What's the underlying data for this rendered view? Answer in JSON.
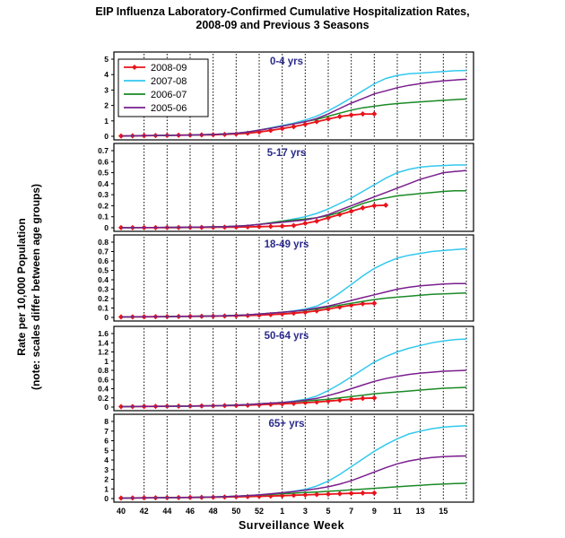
{
  "title_line1": "EIP Influenza Laboratory-Confirmed Cumulative Hospitalization Rates,",
  "title_line2": "2008-09 and Previous 3 Seasons",
  "ylabel_line1": "Rate per 10,000 Population",
  "ylabel_line2": "(note: scales differ between age groups)",
  "xlabel": "Surveillance Week",
  "colors": {
    "2008-09": "#e8141b",
    "2007-08": "#33c8ee",
    "2006-07": "#1a8a26",
    "2005-06": "#7a1e8e"
  },
  "chart_data": {
    "type": "line",
    "x_tick_labels": [
      "40",
      "42",
      "44",
      "46",
      "48",
      "50",
      "52",
      "1",
      "3",
      "5",
      "7",
      "9",
      "11",
      "13",
      "15"
    ],
    "legend": [
      "2008-09",
      "2007-08",
      "2006-07",
      "2005-06"
    ],
    "legend_placement": "top-left of first panel",
    "grid": "vertical dotted lines every other week",
    "panels": [
      {
        "label": "0-4 yrs",
        "ylim": [
          0,
          5
        ],
        "y_ticks": [
          "0",
          "1",
          "2",
          "3",
          "4",
          "5"
        ],
        "series": [
          {
            "name": "2008-09",
            "values": [
              0.02,
              0.03,
              0.04,
              0.05,
              0.06,
              0.07,
              0.08,
              0.09,
              0.1,
              0.12,
              0.15,
              0.2,
              0.28,
              0.38,
              0.5,
              0.62,
              0.78,
              0.95,
              1.12,
              1.28,
              1.38,
              1.45,
              1.45
            ]
          },
          {
            "name": "2007-08",
            "values": [
              0.02,
              0.03,
              0.04,
              0.05,
              0.06,
              0.07,
              0.08,
              0.1,
              0.12,
              0.15,
              0.2,
              0.28,
              0.4,
              0.55,
              0.7,
              0.85,
              1.05,
              1.3,
              1.65,
              2.05,
              2.5,
              2.95,
              3.4,
              3.75,
              3.95,
              4.05,
              4.1,
              4.15,
              4.2,
              4.25,
              4.27
            ]
          },
          {
            "name": "2006-07",
            "values": [
              0.02,
              0.03,
              0.04,
              0.05,
              0.06,
              0.07,
              0.08,
              0.1,
              0.12,
              0.15,
              0.2,
              0.28,
              0.4,
              0.52,
              0.65,
              0.8,
              0.95,
              1.1,
              1.3,
              1.5,
              1.7,
              1.85,
              1.95,
              2.05,
              2.12,
              2.18,
              2.23,
              2.28,
              2.33,
              2.38,
              2.42
            ]
          },
          {
            "name": "2005-06",
            "values": [
              0.02,
              0.03,
              0.04,
              0.05,
              0.06,
              0.07,
              0.08,
              0.1,
              0.12,
              0.15,
              0.2,
              0.28,
              0.4,
              0.52,
              0.65,
              0.8,
              0.95,
              1.15,
              1.45,
              1.8,
              2.15,
              2.45,
              2.75,
              2.95,
              3.15,
              3.3,
              3.42,
              3.52,
              3.6,
              3.65,
              3.7
            ]
          }
        ]
      },
      {
        "label": "5-17 yrs",
        "ylim": [
          0,
          0.7
        ],
        "y_ticks": [
          "0",
          "0.1",
          "0.2",
          "0.3",
          "0.4",
          "0.5",
          "0.6",
          "0.7"
        ],
        "series": [
          {
            "name": "2008-09",
            "values": [
              0.001,
              0.001,
              0.001,
              0.001,
              0.002,
              0.002,
              0.003,
              0.003,
              0.004,
              0.005,
              0.006,
              0.008,
              0.01,
              0.012,
              0.015,
              0.02,
              0.04,
              0.06,
              0.09,
              0.12,
              0.15,
              0.18,
              0.2,
              0.205
            ]
          },
          {
            "name": "2007-08",
            "values": [
              0.001,
              0.001,
              0.002,
              0.002,
              0.003,
              0.004,
              0.005,
              0.006,
              0.008,
              0.01,
              0.015,
              0.02,
              0.03,
              0.045,
              0.06,
              0.08,
              0.1,
              0.13,
              0.17,
              0.22,
              0.27,
              0.33,
              0.39,
              0.45,
              0.5,
              0.53,
              0.55,
              0.56,
              0.565,
              0.57,
              0.57
            ]
          },
          {
            "name": "2006-07",
            "values": [
              0.001,
              0.001,
              0.002,
              0.002,
              0.003,
              0.004,
              0.005,
              0.006,
              0.008,
              0.01,
              0.015,
              0.02,
              0.03,
              0.045,
              0.06,
              0.07,
              0.08,
              0.09,
              0.11,
              0.14,
              0.18,
              0.22,
              0.25,
              0.27,
              0.29,
              0.3,
              0.31,
              0.32,
              0.33,
              0.335,
              0.335
            ]
          },
          {
            "name": "2005-06",
            "values": [
              0.001,
              0.001,
              0.002,
              0.002,
              0.003,
              0.004,
              0.005,
              0.006,
              0.008,
              0.01,
              0.015,
              0.02,
              0.03,
              0.04,
              0.05,
              0.06,
              0.07,
              0.09,
              0.12,
              0.16,
              0.2,
              0.24,
              0.28,
              0.32,
              0.36,
              0.4,
              0.44,
              0.47,
              0.5,
              0.51,
              0.52
            ]
          }
        ]
      },
      {
        "label": "18-49 yrs",
        "ylim": [
          0,
          0.8
        ],
        "y_ticks": [
          "0",
          "0.1",
          "0.2",
          "0.3",
          "0.4",
          "0.5",
          "0.6",
          "0.7",
          "0.8"
        ],
        "series": [
          {
            "name": "2008-09",
            "values": [
              0.005,
              0.006,
              0.007,
              0.008,
              0.009,
              0.01,
              0.011,
              0.012,
              0.013,
              0.015,
              0.017,
              0.02,
              0.024,
              0.03,
              0.036,
              0.045,
              0.055,
              0.07,
              0.09,
              0.11,
              0.13,
              0.145,
              0.15
            ]
          },
          {
            "name": "2007-08",
            "values": [
              0.005,
              0.006,
              0.007,
              0.008,
              0.009,
              0.01,
              0.011,
              0.013,
              0.015,
              0.018,
              0.022,
              0.028,
              0.036,
              0.045,
              0.055,
              0.07,
              0.09,
              0.12,
              0.18,
              0.26,
              0.35,
              0.44,
              0.52,
              0.58,
              0.63,
              0.66,
              0.68,
              0.7,
              0.71,
              0.72,
              0.73
            ]
          },
          {
            "name": "2006-07",
            "values": [
              0.005,
              0.006,
              0.007,
              0.008,
              0.009,
              0.01,
              0.011,
              0.013,
              0.015,
              0.018,
              0.022,
              0.028,
              0.036,
              0.045,
              0.055,
              0.065,
              0.075,
              0.09,
              0.11,
              0.13,
              0.15,
              0.17,
              0.19,
              0.205,
              0.215,
              0.225,
              0.235,
              0.245,
              0.25,
              0.255,
              0.26
            ]
          },
          {
            "name": "2005-06",
            "values": [
              0.005,
              0.006,
              0.007,
              0.008,
              0.009,
              0.01,
              0.011,
              0.013,
              0.015,
              0.018,
              0.022,
              0.028,
              0.036,
              0.045,
              0.055,
              0.065,
              0.08,
              0.1,
              0.12,
              0.15,
              0.18,
              0.21,
              0.24,
              0.27,
              0.3,
              0.32,
              0.335,
              0.345,
              0.355,
              0.36,
              0.36
            ]
          }
        ]
      },
      {
        "label": "50-64 yrs",
        "ylim": [
          0,
          1.6
        ],
        "y_ticks": [
          "0",
          "0.2",
          "0.4",
          "0.6",
          "0.8",
          "1",
          "1.2",
          "1.4",
          "1.6"
        ],
        "series": [
          {
            "name": "2008-09",
            "values": [
              0.01,
              0.012,
              0.014,
              0.016,
              0.018,
              0.02,
              0.022,
              0.025,
              0.028,
              0.032,
              0.036,
              0.04,
              0.05,
              0.06,
              0.07,
              0.08,
              0.095,
              0.11,
              0.13,
              0.15,
              0.17,
              0.19,
              0.2
            ]
          },
          {
            "name": "2007-08",
            "values": [
              0.01,
              0.012,
              0.014,
              0.016,
              0.018,
              0.02,
              0.022,
              0.026,
              0.03,
              0.036,
              0.044,
              0.055,
              0.07,
              0.085,
              0.1,
              0.13,
              0.17,
              0.24,
              0.36,
              0.5,
              0.66,
              0.82,
              0.98,
              1.1,
              1.2,
              1.28,
              1.34,
              1.4,
              1.44,
              1.47,
              1.48
            ]
          },
          {
            "name": "2006-07",
            "values": [
              0.01,
              0.012,
              0.014,
              0.016,
              0.018,
              0.02,
              0.022,
              0.026,
              0.03,
              0.036,
              0.044,
              0.055,
              0.07,
              0.085,
              0.1,
              0.115,
              0.13,
              0.15,
              0.17,
              0.2,
              0.23,
              0.26,
              0.29,
              0.31,
              0.33,
              0.35,
              0.37,
              0.39,
              0.41,
              0.42,
              0.43
            ]
          },
          {
            "name": "2005-06",
            "values": [
              0.01,
              0.012,
              0.014,
              0.016,
              0.018,
              0.02,
              0.022,
              0.026,
              0.03,
              0.036,
              0.044,
              0.055,
              0.07,
              0.085,
              0.1,
              0.12,
              0.15,
              0.19,
              0.25,
              0.32,
              0.4,
              0.48,
              0.56,
              0.62,
              0.67,
              0.71,
              0.74,
              0.76,
              0.78,
              0.79,
              0.8
            ]
          }
        ]
      },
      {
        "label": "65+ yrs",
        "ylim": [
          0,
          8
        ],
        "y_ticks": [
          "0",
          "1",
          "2",
          "3",
          "4",
          "5",
          "6",
          "7",
          "8"
        ],
        "series": [
          {
            "name": "2008-09",
            "values": [
              0.05,
              0.06,
              0.07,
              0.08,
              0.09,
              0.1,
              0.11,
              0.12,
              0.14,
              0.16,
              0.18,
              0.2,
              0.23,
              0.26,
              0.3,
              0.34,
              0.38,
              0.42,
              0.46,
              0.5,
              0.54,
              0.57,
              0.58
            ]
          },
          {
            "name": "2007-08",
            "values": [
              0.05,
              0.06,
              0.07,
              0.08,
              0.09,
              0.1,
              0.12,
              0.14,
              0.17,
              0.2,
              0.24,
              0.3,
              0.38,
              0.48,
              0.6,
              0.75,
              0.95,
              1.3,
              1.8,
              2.5,
              3.3,
              4.1,
              4.9,
              5.6,
              6.2,
              6.7,
              7.0,
              7.25,
              7.4,
              7.5,
              7.55
            ]
          },
          {
            "name": "2006-07",
            "values": [
              0.05,
              0.06,
              0.07,
              0.08,
              0.09,
              0.1,
              0.12,
              0.14,
              0.17,
              0.2,
              0.24,
              0.3,
              0.36,
              0.42,
              0.5,
              0.56,
              0.62,
              0.68,
              0.75,
              0.82,
              0.9,
              0.98,
              1.06,
              1.14,
              1.22,
              1.3,
              1.38,
              1.45,
              1.5,
              1.55,
              1.58
            ]
          },
          {
            "name": "2005-06",
            "values": [
              0.05,
              0.06,
              0.07,
              0.08,
              0.09,
              0.1,
              0.12,
              0.14,
              0.17,
              0.2,
              0.24,
              0.3,
              0.38,
              0.48,
              0.6,
              0.72,
              0.86,
              1.02,
              1.22,
              1.5,
              1.85,
              2.3,
              2.75,
              3.2,
              3.6,
              3.9,
              4.1,
              4.25,
              4.35,
              4.4,
              4.42
            ]
          }
        ]
      }
    ]
  }
}
